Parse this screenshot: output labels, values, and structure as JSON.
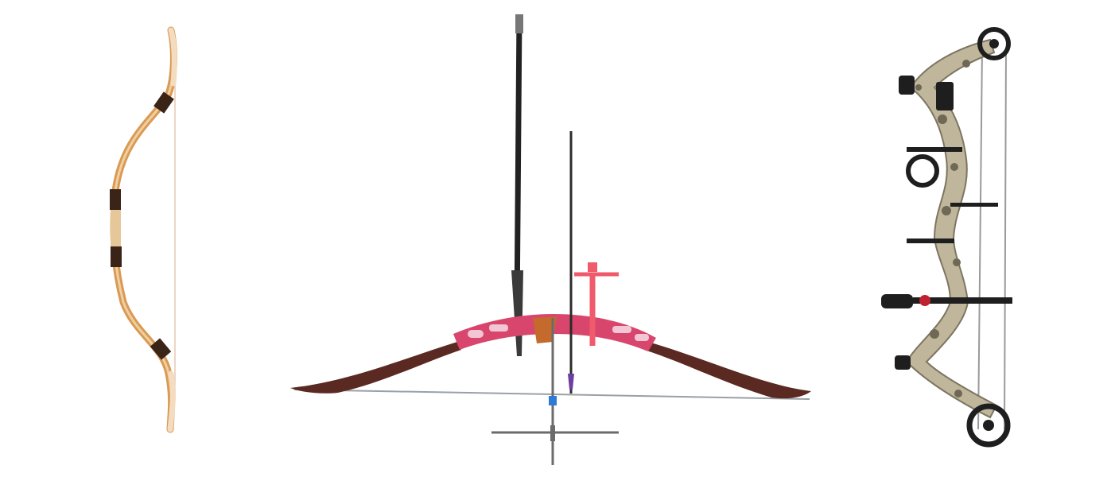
{
  "image": {
    "background": "#ffffff",
    "objects": [
      {
        "kind": "traditional-horse-bow",
        "colors": {
          "wood": "#d99a55",
          "grip": "#3a2418",
          "tip": "#f4dcc0"
        }
      },
      {
        "kind": "olympic-recurve-bow",
        "colors": {
          "riser": "#d8466d",
          "limbs": "#5a2a22",
          "sight": "#ef5b6a",
          "stabilizer": "#222222"
        }
      },
      {
        "kind": "compound-bow-camo",
        "colors": {
          "camo": "#bfb69c",
          "cams": "#1e1e1e",
          "accent": "#c0212e"
        }
      }
    ]
  }
}
